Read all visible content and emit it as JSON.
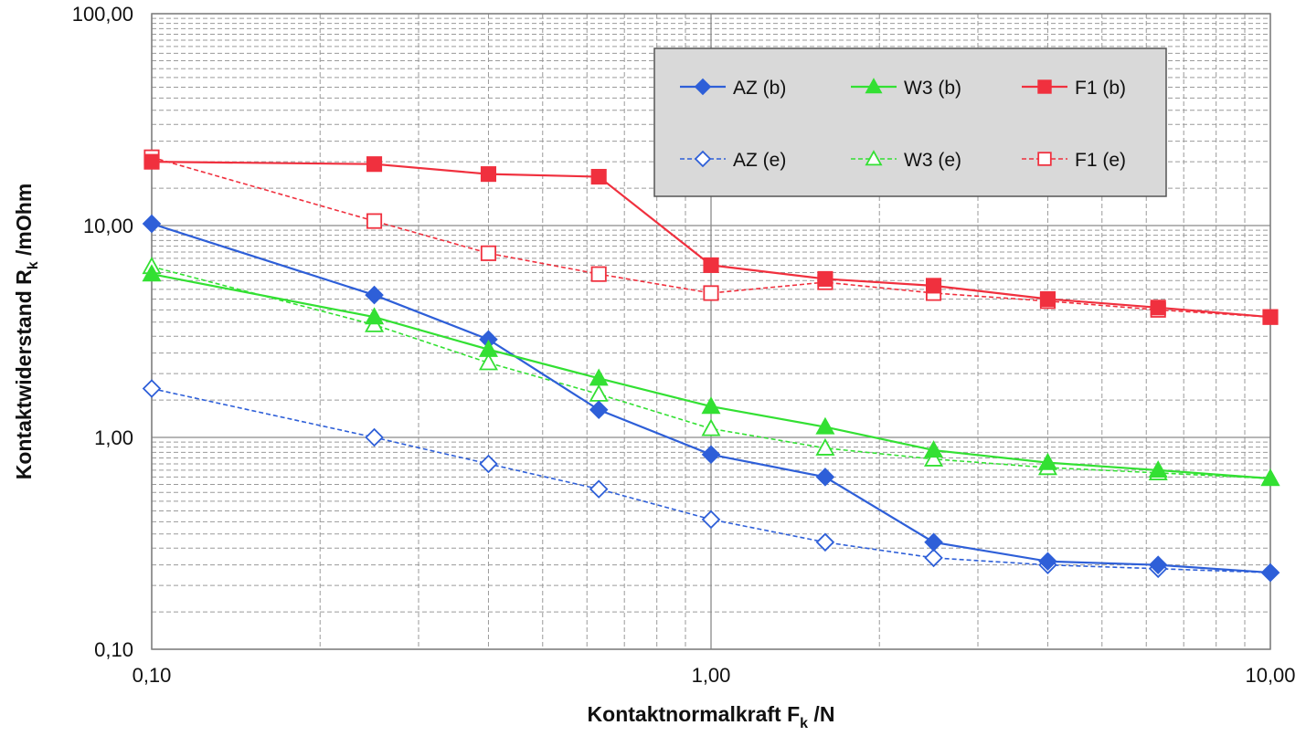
{
  "chart_data": {
    "type": "line",
    "x_scale": "log",
    "y_scale": "log",
    "xlim": [
      0.1,
      10
    ],
    "ylim": [
      0.1,
      100
    ],
    "xlabel": "Kontaktnormalkraft F",
    "xlabel_sub": "k",
    "xlabel_unit": " /N",
    "ylabel": "Kontaktwiderstand R",
    "ylabel_sub": "k",
    "ylabel_unit": " /mOhm",
    "x_ticks": [
      {
        "value": 0.1,
        "label": "0,10"
      },
      {
        "value": 1,
        "label": "1,00"
      },
      {
        "value": 10,
        "label": "10,00"
      }
    ],
    "y_ticks": [
      {
        "value": 0.1,
        "label": "0,10"
      },
      {
        "value": 1,
        "label": "1,00"
      },
      {
        "value": 10,
        "label": "10,00"
      },
      {
        "value": 100,
        "label": "100,00"
      }
    ],
    "grid": true,
    "legend_position": "top-right",
    "series": [
      {
        "name": "AZ (b)",
        "color": "#2E5FD8",
        "marker": "diamond",
        "filled": true,
        "dashed": false,
        "x": [
          0.1,
          0.25,
          0.4,
          0.63,
          1.0,
          1.6,
          2.5,
          4.0,
          6.3,
          10.0
        ],
        "y": [
          10.2,
          4.7,
          2.9,
          1.35,
          0.83,
          0.65,
          0.32,
          0.26,
          0.25,
          0.23
        ]
      },
      {
        "name": "W3 (b)",
        "color": "#33E033",
        "marker": "triangle",
        "filled": true,
        "dashed": false,
        "x": [
          0.1,
          0.25,
          0.4,
          0.63,
          1.0,
          1.6,
          2.5,
          4.0,
          6.3,
          10.0
        ],
        "y": [
          5.9,
          3.7,
          2.6,
          1.9,
          1.4,
          1.12,
          0.87,
          0.76,
          0.7,
          0.64
        ]
      },
      {
        "name": "F1 (b)",
        "color": "#F0303E",
        "marker": "square",
        "filled": true,
        "dashed": false,
        "x": [
          0.1,
          0.25,
          0.4,
          0.63,
          1.0,
          1.6,
          2.5,
          4.0,
          6.3,
          10.0
        ],
        "y": [
          20.0,
          19.5,
          17.5,
          17.0,
          6.5,
          5.6,
          5.2,
          4.5,
          4.1,
          3.7
        ]
      },
      {
        "name": "AZ (e)",
        "color": "#2E5FD8",
        "marker": "diamond",
        "filled": false,
        "dashed": true,
        "x": [
          0.1,
          0.25,
          0.4,
          0.63,
          1.0,
          1.6,
          2.5,
          4.0,
          6.3,
          10.0
        ],
        "y": [
          1.7,
          1.0,
          0.75,
          0.57,
          0.41,
          0.32,
          0.27,
          0.25,
          0.24,
          0.23
        ]
      },
      {
        "name": "W3 (e)",
        "color": "#33E033",
        "marker": "triangle",
        "filled": false,
        "dashed": true,
        "x": [
          0.1,
          0.25,
          0.4,
          0.63,
          1.0,
          1.6,
          2.5,
          4.0,
          6.3,
          10.0
        ],
        "y": [
          6.4,
          3.4,
          2.25,
          1.6,
          1.1,
          0.89,
          0.79,
          0.72,
          0.68,
          0.64
        ]
      },
      {
        "name": "F1 (e)",
        "color": "#F0303E",
        "marker": "square",
        "filled": false,
        "dashed": true,
        "x": [
          0.1,
          0.25,
          0.4,
          0.63,
          1.0,
          1.6,
          2.5,
          4.0,
          6.3,
          10.0
        ],
        "y": [
          21.0,
          10.5,
          7.4,
          5.9,
          4.8,
          5.4,
          4.8,
          4.4,
          4.0,
          3.7
        ]
      }
    ]
  }
}
